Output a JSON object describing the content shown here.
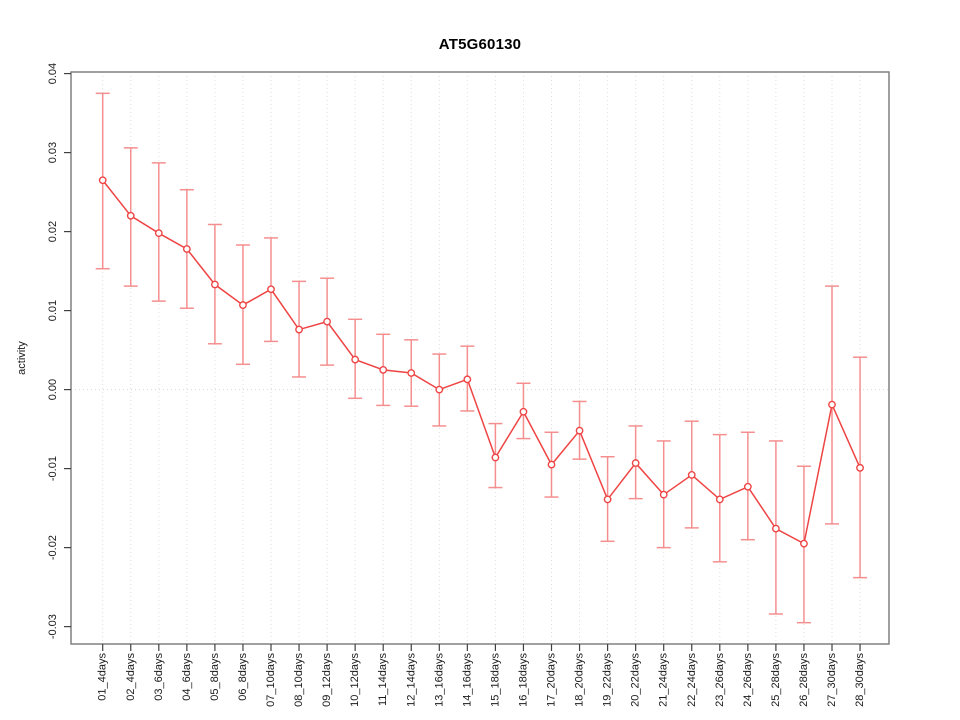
{
  "chart_data": {
    "type": "line",
    "title": "AT5G60130",
    "xlabel": "",
    "ylabel": "activity",
    "legend": "none",
    "grid": {
      "vertical_dotted_at_each_category": true,
      "horizontal_dotted_at_zero": true
    },
    "ylim": [
      -0.0322,
      0.0402
    ],
    "yticks": {
      "values": [
        0.04,
        0.03,
        0.02,
        0.01,
        0.0,
        -0.01,
        -0.02,
        -0.03
      ],
      "labels": [
        "0.04",
        "0.03",
        "0.02",
        "0.01",
        "0.00",
        "-0.01",
        "-0.02",
        "-0.03"
      ]
    },
    "categories": [
      "01_4days",
      "02_4days",
      "03_6days",
      "04_6days",
      "05_8days",
      "06_8days",
      "07_10days",
      "08_10days",
      "09_12days",
      "10_12days",
      "11_14days",
      "12_14days",
      "13_16days",
      "14_16days",
      "15_18days",
      "16_18days",
      "17_20days",
      "18_20days",
      "19_22days",
      "20_22days",
      "21_24days",
      "22_24days",
      "23_26days",
      "24_26days",
      "25_28days",
      "26_28days",
      "27_30days",
      "28_30days"
    ],
    "series": [
      {
        "name": "activity",
        "marker": "open-circle",
        "values": [
          0.0265,
          0.022,
          0.0198,
          0.0178,
          0.0133,
          0.0107,
          0.0127,
          0.0076,
          0.0086,
          0.0038,
          0.0025,
          0.0021,
          0.0,
          0.0013,
          -0.0086,
          -0.0028,
          -0.0095,
          -0.0052,
          -0.0139,
          -0.0093,
          -0.0133,
          -0.0108,
          -0.0139,
          -0.0123,
          -0.0176,
          -0.0195,
          -0.0019,
          -0.0099
        ],
        "error_upper": [
          0.0375,
          0.0306,
          0.0287,
          0.0253,
          0.0209,
          0.0183,
          0.0192,
          0.0137,
          0.0141,
          0.0089,
          0.007,
          0.0063,
          0.0045,
          0.0055,
          -0.0043,
          0.0008,
          -0.0054,
          -0.0015,
          -0.0085,
          -0.0046,
          -0.0065,
          -0.004,
          -0.0057,
          -0.0054,
          -0.0065,
          -0.0097,
          0.0131,
          0.0041
        ],
        "error_lower": [
          0.0153,
          0.0131,
          0.0112,
          0.0103,
          0.0058,
          0.0032,
          0.0061,
          0.0016,
          0.0031,
          -0.0011,
          -0.002,
          -0.0021,
          -0.0046,
          -0.0027,
          -0.0124,
          -0.0062,
          -0.0136,
          -0.0088,
          -0.0192,
          -0.0138,
          -0.02,
          -0.0175,
          -0.0218,
          -0.019,
          -0.0284,
          -0.0295,
          -0.017,
          -0.0238
        ]
      }
    ],
    "colors": {
      "line": "#ef4444",
      "marker_stroke": "#ef4444",
      "marker_fill": "#ffffff",
      "error_bar": "#f58f8f",
      "grid": "#dedede",
      "zero_line": "#d6d6d6",
      "frame": "#808080",
      "tick": "#404040",
      "text": "#1a1a1a"
    }
  }
}
